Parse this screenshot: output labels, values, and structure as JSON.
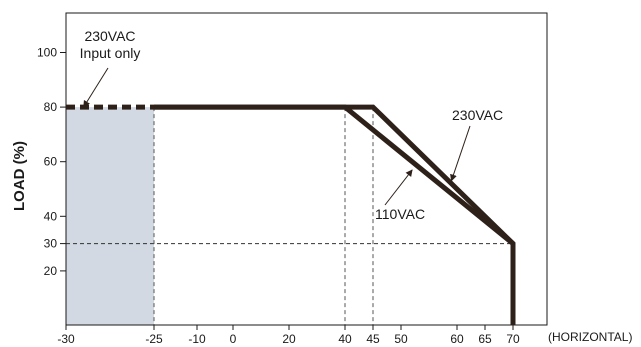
{
  "chart_data": {
    "type": "line",
    "xlabel": "(HORIZONTAL)",
    "ylabel": "LOAD (%)",
    "x_ticks": [
      {
        "value": -30,
        "label": "-30"
      },
      {
        "value": -25,
        "label": "-25"
      },
      {
        "value": -10,
        "label": "-10"
      },
      {
        "value": 0,
        "label": "0"
      },
      {
        "value": 20,
        "label": "20"
      },
      {
        "value": 40,
        "label": "40"
      },
      {
        "value": 45,
        "label": "45"
      },
      {
        "value": 50,
        "label": "50"
      },
      {
        "value": 60,
        "label": "60"
      },
      {
        "value": 65,
        "label": "65"
      },
      {
        "value": 70,
        "label": "70"
      }
    ],
    "y_ticks": [
      {
        "value": 20,
        "label": "20"
      },
      {
        "value": 30,
        "label": "30"
      },
      {
        "value": 40,
        "label": "40"
      },
      {
        "value": 60,
        "label": "60"
      },
      {
        "value": 80,
        "label": "80"
      },
      {
        "value": 100,
        "label": "100"
      }
    ],
    "series": [
      {
        "name": "230VAC",
        "x": [
          -25,
          45,
          70,
          70
        ],
        "y": [
          80,
          80,
          30,
          0
        ]
      },
      {
        "name": "110VAC",
        "x": [
          -25,
          40,
          70
        ],
        "y": [
          80,
          80,
          30
        ]
      },
      {
        "name": "230VAC Input only",
        "style": "dashed",
        "x": [
          -30,
          -25
        ],
        "y": [
          80,
          80
        ]
      }
    ],
    "shaded_region": {
      "x": [
        -30,
        -25
      ],
      "y": [
        0,
        80
      ],
      "color": "#d3d9e3"
    },
    "reference_lines": [
      {
        "axis": "y",
        "value": 30
      },
      {
        "axis": "x",
        "value": -25
      },
      {
        "axis": "x",
        "value": 40
      },
      {
        "axis": "x",
        "value": 45
      }
    ],
    "annotations": [
      {
        "text": "230VAC",
        "lines": [
          "230VAC",
          "Input only"
        ],
        "points_to": {
          "x": -29,
          "y": 80
        }
      },
      {
        "text": "230VAC",
        "points_to": {
          "x": 59,
          "y": 53
        }
      },
      {
        "text": "110VAC",
        "points_to": {
          "x": 52,
          "y": 57
        }
      }
    ],
    "colors": {
      "line": "#2e211a",
      "shade": "#d3d9e3",
      "axis": "#1a1a1a"
    },
    "grid": false
  }
}
